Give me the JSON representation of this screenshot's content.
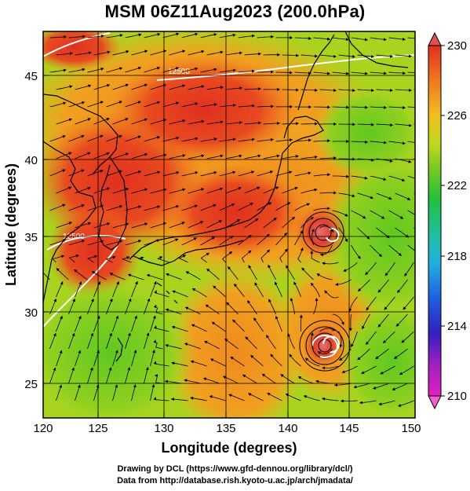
{
  "title": "MSM 06Z11Aug2023 (200.0hPa)",
  "x_axis": {
    "label": "Longitude (degrees)",
    "ticks": [
      "120",
      "125",
      "130",
      "135",
      "140",
      "145",
      "150"
    ],
    "range": [
      120,
      150
    ]
  },
  "y_axis": {
    "label": "Latitude  (degrees)",
    "ticks": [
      "25",
      "30",
      "35",
      "40",
      "45"
    ],
    "range": [
      22.4,
      47.6
    ]
  },
  "colorbar": {
    "ticks": [
      "230",
      "226",
      "222",
      "218",
      "214",
      "210"
    ],
    "range": [
      210,
      230
    ],
    "colors": [
      "#e020c0",
      "#8020c0",
      "#2020c0",
      "#2080e0",
      "#20c0c0",
      "#20c060",
      "#40c020",
      "#a0d020",
      "#e0e020",
      "#f0b020",
      "#f07020",
      "#e03020"
    ]
  },
  "contour_labels": [
    "12500",
    "12500"
  ],
  "credits": [
    "Drawing by DCL (https://www.gfd-dennou.org/library/dcl/)",
    "Data from http://database.rish.kyoto-u.ac.jp/arch/jmadata/"
  ]
}
